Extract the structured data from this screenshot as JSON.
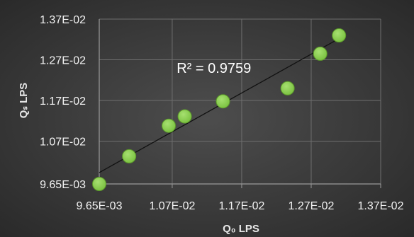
{
  "chart_data": {
    "type": "scatter",
    "title": "",
    "xlabel": "Q₀ LPS",
    "ylabel": "Qₛ LPS",
    "xlim": [
      0.00965,
      0.0137
    ],
    "ylim": [
      0.00965,
      0.0137
    ],
    "x_ticks": [
      "9.65E-03",
      "1.07E-02",
      "1.17E-02",
      "1.27E-02",
      "1.37E-02"
    ],
    "y_ticks": [
      "9.65E-03",
      "1.07E-02",
      "1.17E-02",
      "1.27E-02",
      "1.37E-02"
    ],
    "x_tick_values": [
      0.00965,
      0.0107,
      0.0117,
      0.0127,
      0.0137
    ],
    "y_tick_values": [
      0.00965,
      0.0107,
      0.0117,
      0.0127,
      0.0137
    ],
    "grid": "horizontal-and-vertical",
    "legend": "none",
    "points": [
      {
        "x": 0.00965,
        "y": 0.00965
      },
      {
        "x": 0.01008,
        "y": 0.01033
      },
      {
        "x": 0.01065,
        "y": 0.01108
      },
      {
        "x": 0.01088,
        "y": 0.01131
      },
      {
        "x": 0.01143,
        "y": 0.01168
      },
      {
        "x": 0.01236,
        "y": 0.012
      },
      {
        "x": 0.01283,
        "y": 0.01285
      },
      {
        "x": 0.0131,
        "y": 0.0133
      }
    ],
    "trendline": {
      "type": "linear",
      "x": [
        0.00965,
        0.0131
      ],
      "y": [
        0.00993,
        0.01322
      ]
    },
    "annotation": "R² = 0.9759",
    "annotation_x": 0.0113,
    "annotation_y": 0.01238,
    "colors": {
      "background_center": "#4d4d4d",
      "background_edge": "#2a2a2a",
      "marker_fill": "#7cc242",
      "marker_stroke": "#5c9a2a",
      "trendline": "#111111",
      "grid": "#6f6f6f",
      "axis": "#9a9a9a"
    }
  }
}
